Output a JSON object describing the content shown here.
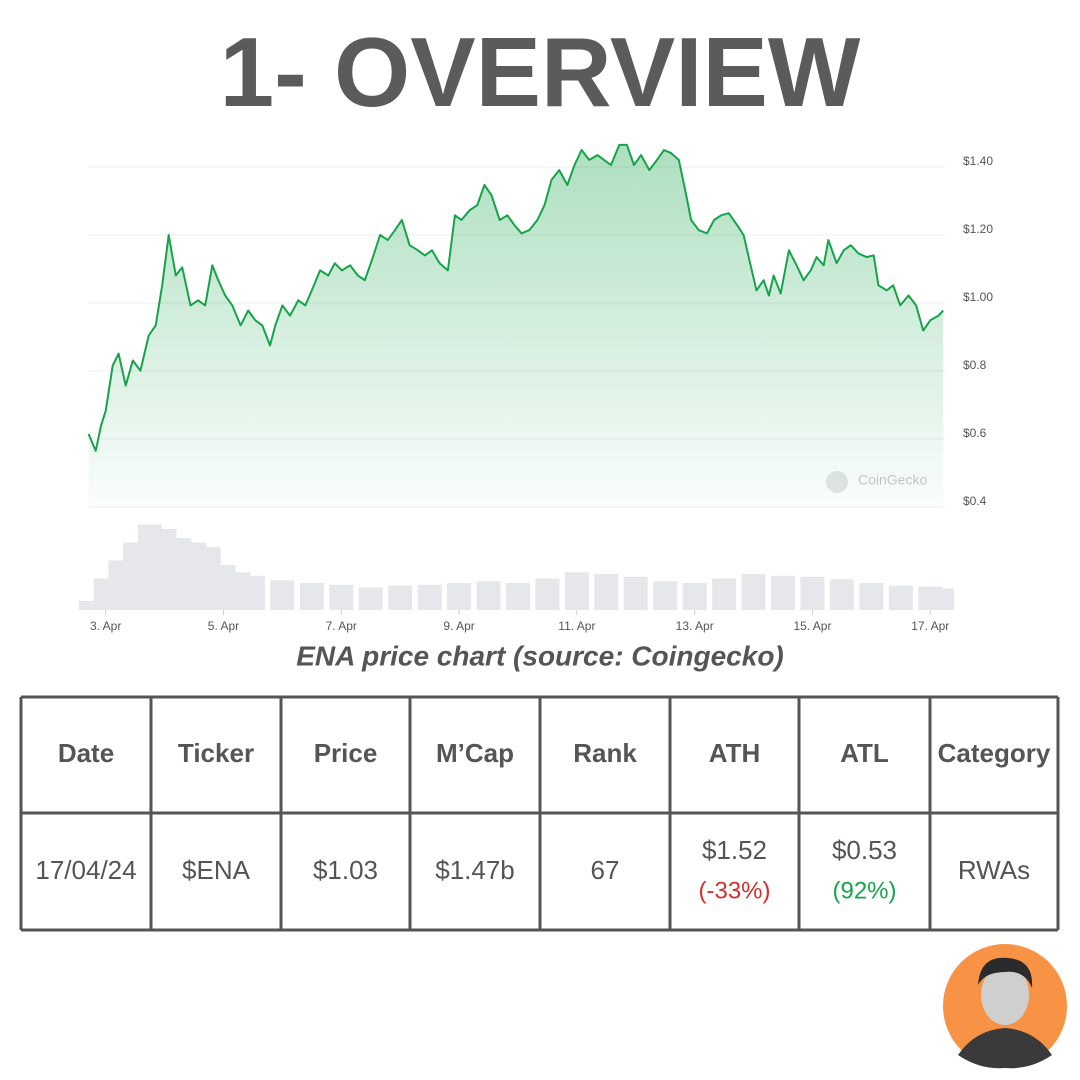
{
  "title": "1- OVERVIEW",
  "caption": "ENA price chart (source: Coingecko)",
  "chart_data": {
    "type": "line",
    "watermark": "CoinGecko",
    "xlim": [
      2.7,
      17.25
    ],
    "xticks": [
      {
        "value": 3,
        "label": "3. Apr"
      },
      {
        "value": 5,
        "label": "5. Apr"
      },
      {
        "value": 7,
        "label": "7. Apr"
      },
      {
        "value": 9,
        "label": "9. Apr"
      },
      {
        "value": 11,
        "label": "11. Apr"
      },
      {
        "value": 13,
        "label": "13. Apr"
      },
      {
        "value": 15,
        "label": "15. Apr"
      },
      {
        "value": 17,
        "label": "17. Apr"
      }
    ],
    "ylim": [
      0.4,
      1.5
    ],
    "yticks": [
      {
        "value": 1.4,
        "label": "$1.40"
      },
      {
        "value": 1.2,
        "label": "$1.20"
      },
      {
        "value": 1.0,
        "label": "$1.00"
      },
      {
        "value": 0.8,
        "label": "$0.8"
      },
      {
        "value": 0.6,
        "label": "$0.6"
      },
      {
        "value": 0.4,
        "label": "$0.4"
      }
    ],
    "y2lim": [
      0,
      100
    ],
    "grid": true,
    "series": [
      {
        "color": "#16a34a",
        "x": [
          2.71,
          2.83,
          2.92,
          3.0,
          3.12,
          3.22,
          3.34,
          3.46,
          3.59,
          3.73,
          3.85,
          3.96,
          4.07,
          4.19,
          4.3,
          4.44,
          4.57,
          4.69,
          4.81,
          4.91,
          5.03,
          5.15,
          5.29,
          5.42,
          5.54,
          5.66,
          5.79,
          5.88,
          6.0,
          6.13,
          6.27,
          6.39,
          6.5,
          6.64,
          6.78,
          6.89,
          7.01,
          7.15,
          7.28,
          7.4,
          7.52,
          7.66,
          7.79,
          7.91,
          8.03,
          8.16,
          8.3,
          8.42,
          8.54,
          8.67,
          8.81,
          8.93,
          9.04,
          9.18,
          9.31,
          9.43,
          9.55,
          9.69,
          9.82,
          9.94,
          10.06,
          10.19,
          10.33,
          10.45,
          10.57,
          10.7,
          10.84,
          10.96,
          11.08,
          11.21,
          11.35,
          11.46,
          11.58,
          11.72,
          11.85,
          11.97,
          12.09,
          12.23,
          12.36,
          12.48,
          12.6,
          12.73,
          12.84,
          12.94,
          13.07,
          13.21,
          13.33,
          13.45,
          13.58,
          13.72,
          13.83,
          13.95,
          14.05,
          14.17,
          14.26,
          14.34,
          14.46,
          14.6,
          14.73,
          14.85,
          14.97,
          15.07,
          15.19,
          15.27,
          15.41,
          15.53,
          15.65,
          15.78,
          15.92,
          16.04,
          16.12,
          16.26,
          16.37,
          16.49,
          16.63,
          16.76,
          16.88,
          17.0,
          17.14,
          17.22
        ],
        "values": [
          0.615,
          0.565,
          0.639,
          0.683,
          0.816,
          0.851,
          0.757,
          0.831,
          0.801,
          0.904,
          0.934,
          1.052,
          1.2,
          1.081,
          1.105,
          0.993,
          1.008,
          0.993,
          1.111,
          1.067,
          1.022,
          0.993,
          0.934,
          0.978,
          0.949,
          0.934,
          0.875,
          0.934,
          0.993,
          0.963,
          1.008,
          0.993,
          1.037,
          1.096,
          1.081,
          1.117,
          1.096,
          1.111,
          1.081,
          1.067,
          1.126,
          1.2,
          1.185,
          1.214,
          1.244,
          1.17,
          1.155,
          1.14,
          1.155,
          1.117,
          1.096,
          1.258,
          1.244,
          1.273,
          1.288,
          1.347,
          1.317,
          1.244,
          1.258,
          1.229,
          1.205,
          1.214,
          1.244,
          1.288,
          1.362,
          1.391,
          1.347,
          1.406,
          1.45,
          1.421,
          1.435,
          1.421,
          1.406,
          1.465,
          1.465,
          1.406,
          1.435,
          1.391,
          1.421,
          1.45,
          1.441,
          1.421,
          1.332,
          1.244,
          1.214,
          1.205,
          1.244,
          1.258,
          1.264,
          1.229,
          1.2,
          1.111,
          1.037,
          1.067,
          1.022,
          1.081,
          1.028,
          1.155,
          1.111,
          1.067,
          1.096,
          1.135,
          1.111,
          1.185,
          1.117,
          1.155,
          1.17,
          1.146,
          1.135,
          1.14,
          1.052,
          1.037,
          1.052,
          0.993,
          1.022,
          0.993,
          0.919,
          0.949,
          0.963,
          0.978
        ]
      },
      {
        "color": "#e5e7eb",
        "axis": "y2",
        "x": [
          2.75,
          3.0,
          3.25,
          3.5,
          3.75,
          4.0,
          4.25,
          4.5,
          4.75,
          5.0,
          5.25,
          5.5,
          6.0,
          6.5,
          7.0,
          7.5,
          8.0,
          8.5,
          9.0,
          9.5,
          10.0,
          10.5,
          11.0,
          11.5,
          12.0,
          12.5,
          13.0,
          13.5,
          14.0,
          14.5,
          15.0,
          15.5,
          16.0,
          16.5,
          17.0,
          17.2
        ],
        "values": [
          10,
          35,
          55,
          75,
          95,
          90,
          80,
          75,
          70,
          50,
          42,
          38,
          33,
          30,
          28,
          25,
          27,
          28,
          30,
          32,
          30,
          35,
          42,
          40,
          37,
          32,
          30,
          35,
          40,
          38,
          37,
          34,
          30,
          27,
          26,
          24
        ]
      }
    ]
  },
  "table": {
    "header": [
      "Date",
      "Ticker",
      "Price",
      "M’Cap",
      "Rank",
      "ATH",
      "ATL",
      "Category"
    ],
    "rows": [
      [
        "17/04/24",
        "$ENA",
        "$1.03",
        "$1.47b",
        "67",
        {
          "value": "$1.52",
          "change": "(-33%)"
        },
        {
          "value": "$0.53",
          "change": "(92%)"
        },
        "RWAs"
      ]
    ]
  }
}
